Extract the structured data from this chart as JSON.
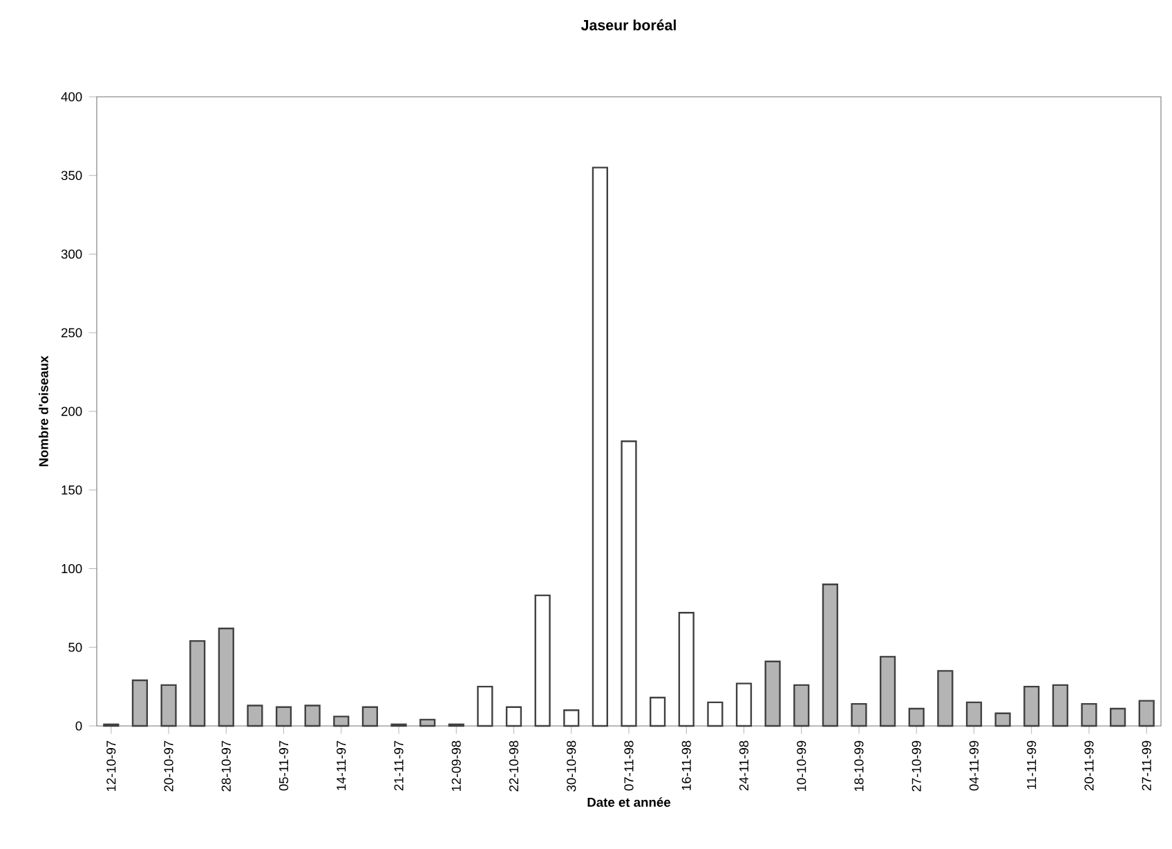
{
  "chart_data": {
    "type": "bar",
    "title": "Jaseur boréal",
    "xlabel": "Date et année",
    "ylabel": "Nombre d'oiseaux",
    "categories": [
      "12-10-97",
      null,
      "20-10-97",
      null,
      "28-10-97",
      null,
      "05-11-97",
      null,
      "14-11-97",
      null,
      "21-11-97",
      null,
      "12-09-98",
      null,
      "22-10-98",
      null,
      "30-10-98",
      null,
      "07-11-98",
      null,
      "16-11-98",
      null,
      "24-11-98",
      null,
      "10-10-99",
      null,
      "18-10-99",
      null,
      "27-10-99",
      null,
      "04-11-99",
      null,
      "11-11-99",
      null,
      "20-11-99",
      null,
      "27-11-99"
    ],
    "values": [
      1,
      29,
      26,
      54,
      62,
      13,
      12,
      13,
      6,
      12,
      1,
      4,
      1,
      25,
      12,
      83,
      10,
      355,
      181,
      18,
      72,
      15,
      27,
      41,
      26,
      90,
      14,
      44,
      11,
      35,
      15,
      8,
      25,
      26,
      14,
      11,
      16
    ],
    "colors": [
      "#b4b4b4",
      "#b4b4b4",
      "#b4b4b4",
      "#b4b4b4",
      "#b4b4b4",
      "#b4b4b4",
      "#b4b4b4",
      "#b4b4b4",
      "#b4b4b4",
      "#b4b4b4",
      "#b4b4b4",
      "#b4b4b4",
      "#b4b4b4",
      "#ffffff",
      "#ffffff",
      "#ffffff",
      "#ffffff",
      "#ffffff",
      "#ffffff",
      "#ffffff",
      "#ffffff",
      "#ffffff",
      "#ffffff",
      "#b4b4b4",
      "#b4b4b4",
      "#b4b4b4",
      "#b4b4b4",
      "#b4b4b4",
      "#b4b4b4",
      "#b4b4b4",
      "#b4b4b4",
      "#b4b4b4",
      "#b4b4b4",
      "#b4b4b4",
      "#b4b4b4",
      "#b4b4b4",
      "#b4b4b4"
    ],
    "ylim": [
      0,
      400
    ],
    "yticks": [
      0,
      50,
      100,
      150,
      200,
      250,
      300,
      350,
      400
    ],
    "grid": false
  }
}
